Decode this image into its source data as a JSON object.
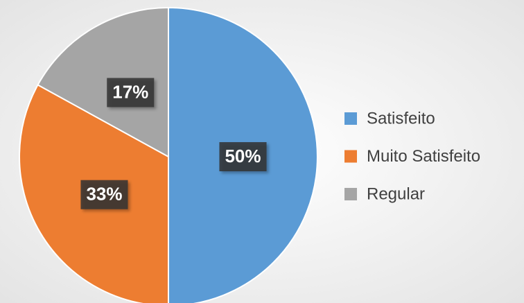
{
  "chart_data": {
    "type": "pie",
    "categories": [
      "Satisfeito",
      "Muito Satisfeito",
      "Regular"
    ],
    "values": [
      50,
      33,
      17
    ],
    "value_labels": [
      "50%",
      "33%",
      "17%"
    ],
    "colors": [
      "#5b9bd5",
      "#ed7d31",
      "#a5a5a5"
    ],
    "legend": "right"
  }
}
